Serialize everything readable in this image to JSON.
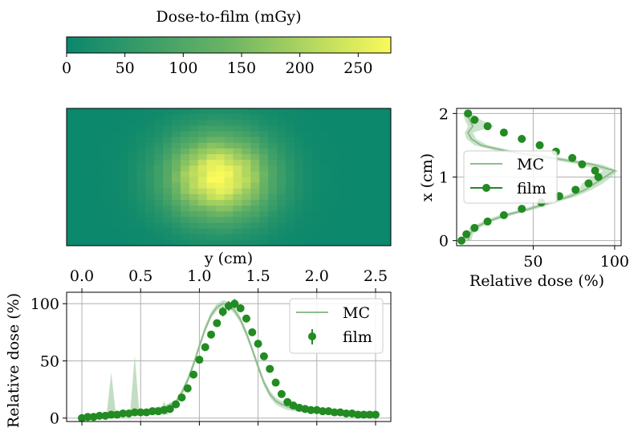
{
  "colors": {
    "film": "#228b22",
    "mc_line": "#8fbc8f",
    "mc_band": "#a8d0a8",
    "grid": "#b0b0b0",
    "cmap_low": "#0a876c",
    "cmap_high": "#fafa5a"
  },
  "chart_data": [
    {
      "id": "colorbar",
      "type": "heatmap",
      "title": "Dose-to-film (mGy)",
      "range": [
        0,
        278
      ],
      "ticks": [
        "0",
        "50",
        "100",
        "150",
        "200",
        "250"
      ],
      "tick_values": [
        0,
        50,
        100,
        150,
        200,
        250
      ]
    },
    {
      "id": "dose_map",
      "type": "heatmap",
      "xlabel": "y (cm)",
      "xlim": [
        0,
        2.6
      ],
      "ylim": [
        0,
        1.0
      ],
      "peak_mGy": 275,
      "center": [
        1.22,
        0.5
      ],
      "sigma_y": 0.3,
      "sigma_x": 0.22,
      "pixel_size_cm": 0.07
    },
    {
      "id": "profile_y",
      "type": "line",
      "xlabel": "y (cm)",
      "ylabel": "Relative dose (%)",
      "xlim": [
        -0.13,
        2.63
      ],
      "ylim": [
        -3,
        110
      ],
      "xticks": [
        "0.0",
        "0.5",
        "1.0",
        "1.5",
        "2.0",
        "2.5"
      ],
      "xtick_values": [
        0,
        0.5,
        1.0,
        1.5,
        2.0,
        2.5
      ],
      "yticks": [
        "0",
        "50",
        "100"
      ],
      "ytick_values": [
        0,
        50,
        100
      ],
      "legend_position": "top-right",
      "series": [
        {
          "name": "MC",
          "x": [
            0.0,
            0.1,
            0.2,
            0.3,
            0.4,
            0.5,
            0.6,
            0.7,
            0.8,
            0.85,
            0.9,
            0.95,
            1.0,
            1.05,
            1.1,
            1.15,
            1.2,
            1.25,
            1.3,
            1.35,
            1.4,
            1.45,
            1.5,
            1.55,
            1.6,
            1.65,
            1.7,
            1.75,
            1.8,
            2.0,
            2.2,
            2.4,
            2.5
          ],
          "values": [
            1,
            2,
            2,
            3,
            4,
            5,
            7,
            9,
            14,
            22,
            33,
            47,
            63,
            78,
            90,
            97,
            100,
            99,
            94,
            86,
            74,
            60,
            45,
            31,
            21,
            15,
            12,
            10,
            8,
            6,
            5,
            4,
            3
          ],
          "band_low": [
            0,
            1,
            1,
            2,
            3,
            4,
            5,
            7,
            11,
            19,
            30,
            44,
            60,
            75,
            87,
            94,
            97,
            96,
            91,
            83,
            71,
            57,
            42,
            28,
            18,
            12,
            9,
            7,
            6,
            4,
            3,
            2,
            2
          ],
          "band_high": [
            2,
            3,
            3,
            4,
            5,
            6,
            9,
            11,
            16,
            25,
            36,
            50,
            66,
            81,
            93,
            100,
            103,
            102,
            97,
            89,
            77,
            63,
            48,
            34,
            24,
            18,
            15,
            13,
            10,
            8,
            7,
            6,
            5
          ],
          "spikes": [
            [
              0.25,
              40
            ],
            [
              0.45,
              55
            ],
            [
              0.7,
              15
            ]
          ]
        },
        {
          "name": "film",
          "x": [
            0.0,
            0.05,
            0.1,
            0.15,
            0.2,
            0.25,
            0.3,
            0.35,
            0.4,
            0.45,
            0.5,
            0.55,
            0.6,
            0.65,
            0.7,
            0.75,
            0.8,
            0.85,
            0.9,
            0.95,
            1.0,
            1.05,
            1.1,
            1.15,
            1.2,
            1.25,
            1.3,
            1.35,
            1.4,
            1.45,
            1.5,
            1.55,
            1.6,
            1.65,
            1.7,
            1.75,
            1.8,
            1.85,
            1.9,
            1.95,
            2.0,
            2.05,
            2.1,
            2.15,
            2.2,
            2.25,
            2.3,
            2.35,
            2.4,
            2.45,
            2.5
          ],
          "values": [
            0,
            1,
            1,
            2,
            2,
            3,
            3,
            4,
            4,
            5,
            5,
            5,
            6,
            6,
            7,
            8,
            12,
            18,
            26,
            38,
            51,
            62,
            73,
            83,
            93,
            98,
            100,
            96,
            87,
            75,
            65,
            54,
            43,
            31,
            21,
            14,
            11,
            9,
            8,
            7,
            7,
            6,
            6,
            5,
            5,
            4,
            4,
            3,
            3,
            3,
            3
          ],
          "errors": [
            1,
            1,
            1,
            1,
            1,
            1,
            1,
            1,
            1,
            1,
            1,
            1,
            1,
            1,
            1,
            1,
            1,
            1,
            1,
            2,
            2,
            2,
            3,
            3,
            4,
            4,
            4,
            3,
            3,
            2,
            2,
            2,
            2,
            1,
            1,
            1,
            1,
            1,
            1,
            1,
            1,
            1,
            1,
            1,
            1,
            1,
            1,
            1,
            1,
            1,
            1
          ]
        }
      ]
    },
    {
      "id": "profile_x",
      "type": "line",
      "xlabel": "Relative dose (%)",
      "ylabel": "x (cm)",
      "xlim": [
        3,
        104
      ],
      "ylim": [
        -0.08,
        2.08
      ],
      "xticks": [
        "50",
        "100"
      ],
      "xtick_values": [
        50,
        100
      ],
      "yticks": [
        "0",
        "1",
        "2"
      ],
      "ytick_values": [
        0,
        1,
        2
      ],
      "legend_position": "center-left",
      "series": [
        {
          "name": "MC",
          "x_cm": [
            0.0,
            0.1,
            0.2,
            0.3,
            0.4,
            0.5,
            0.6,
            0.7,
            0.8,
            0.9,
            1.0,
            1.1,
            1.2,
            1.3,
            1.4,
            1.5,
            1.6,
            1.7,
            1.8,
            1.9,
            2.0
          ],
          "values": [
            10,
            11,
            14,
            22,
            33,
            48,
            60,
            73,
            82,
            88,
            94,
            100,
            86,
            62,
            35,
            18,
            12,
            10,
            13,
            11,
            9
          ],
          "band_low": [
            8,
            9,
            11,
            19,
            29,
            44,
            56,
            69,
            78,
            80,
            86,
            93,
            78,
            55,
            29,
            14,
            9,
            8,
            10,
            8,
            7
          ],
          "band_high": [
            12,
            13,
            17,
            25,
            37,
            52,
            64,
            77,
            86,
            93,
            98,
            102,
            92,
            68,
            40,
            22,
            15,
            13,
            26,
            18,
            12
          ]
        },
        {
          "name": "film",
          "x_cm": [
            0.0,
            0.1,
            0.2,
            0.3,
            0.4,
            0.5,
            0.6,
            0.7,
            0.8,
            0.9,
            1.0,
            1.1,
            1.2,
            1.3,
            1.4,
            1.5,
            1.6,
            1.7,
            1.8,
            1.9,
            2.0
          ],
          "values": [
            6,
            9,
            14,
            22,
            32,
            43,
            55,
            66,
            76,
            84,
            90,
            88,
            80,
            74,
            64,
            54,
            43,
            32,
            22,
            14,
            10
          ]
        }
      ]
    }
  ]
}
